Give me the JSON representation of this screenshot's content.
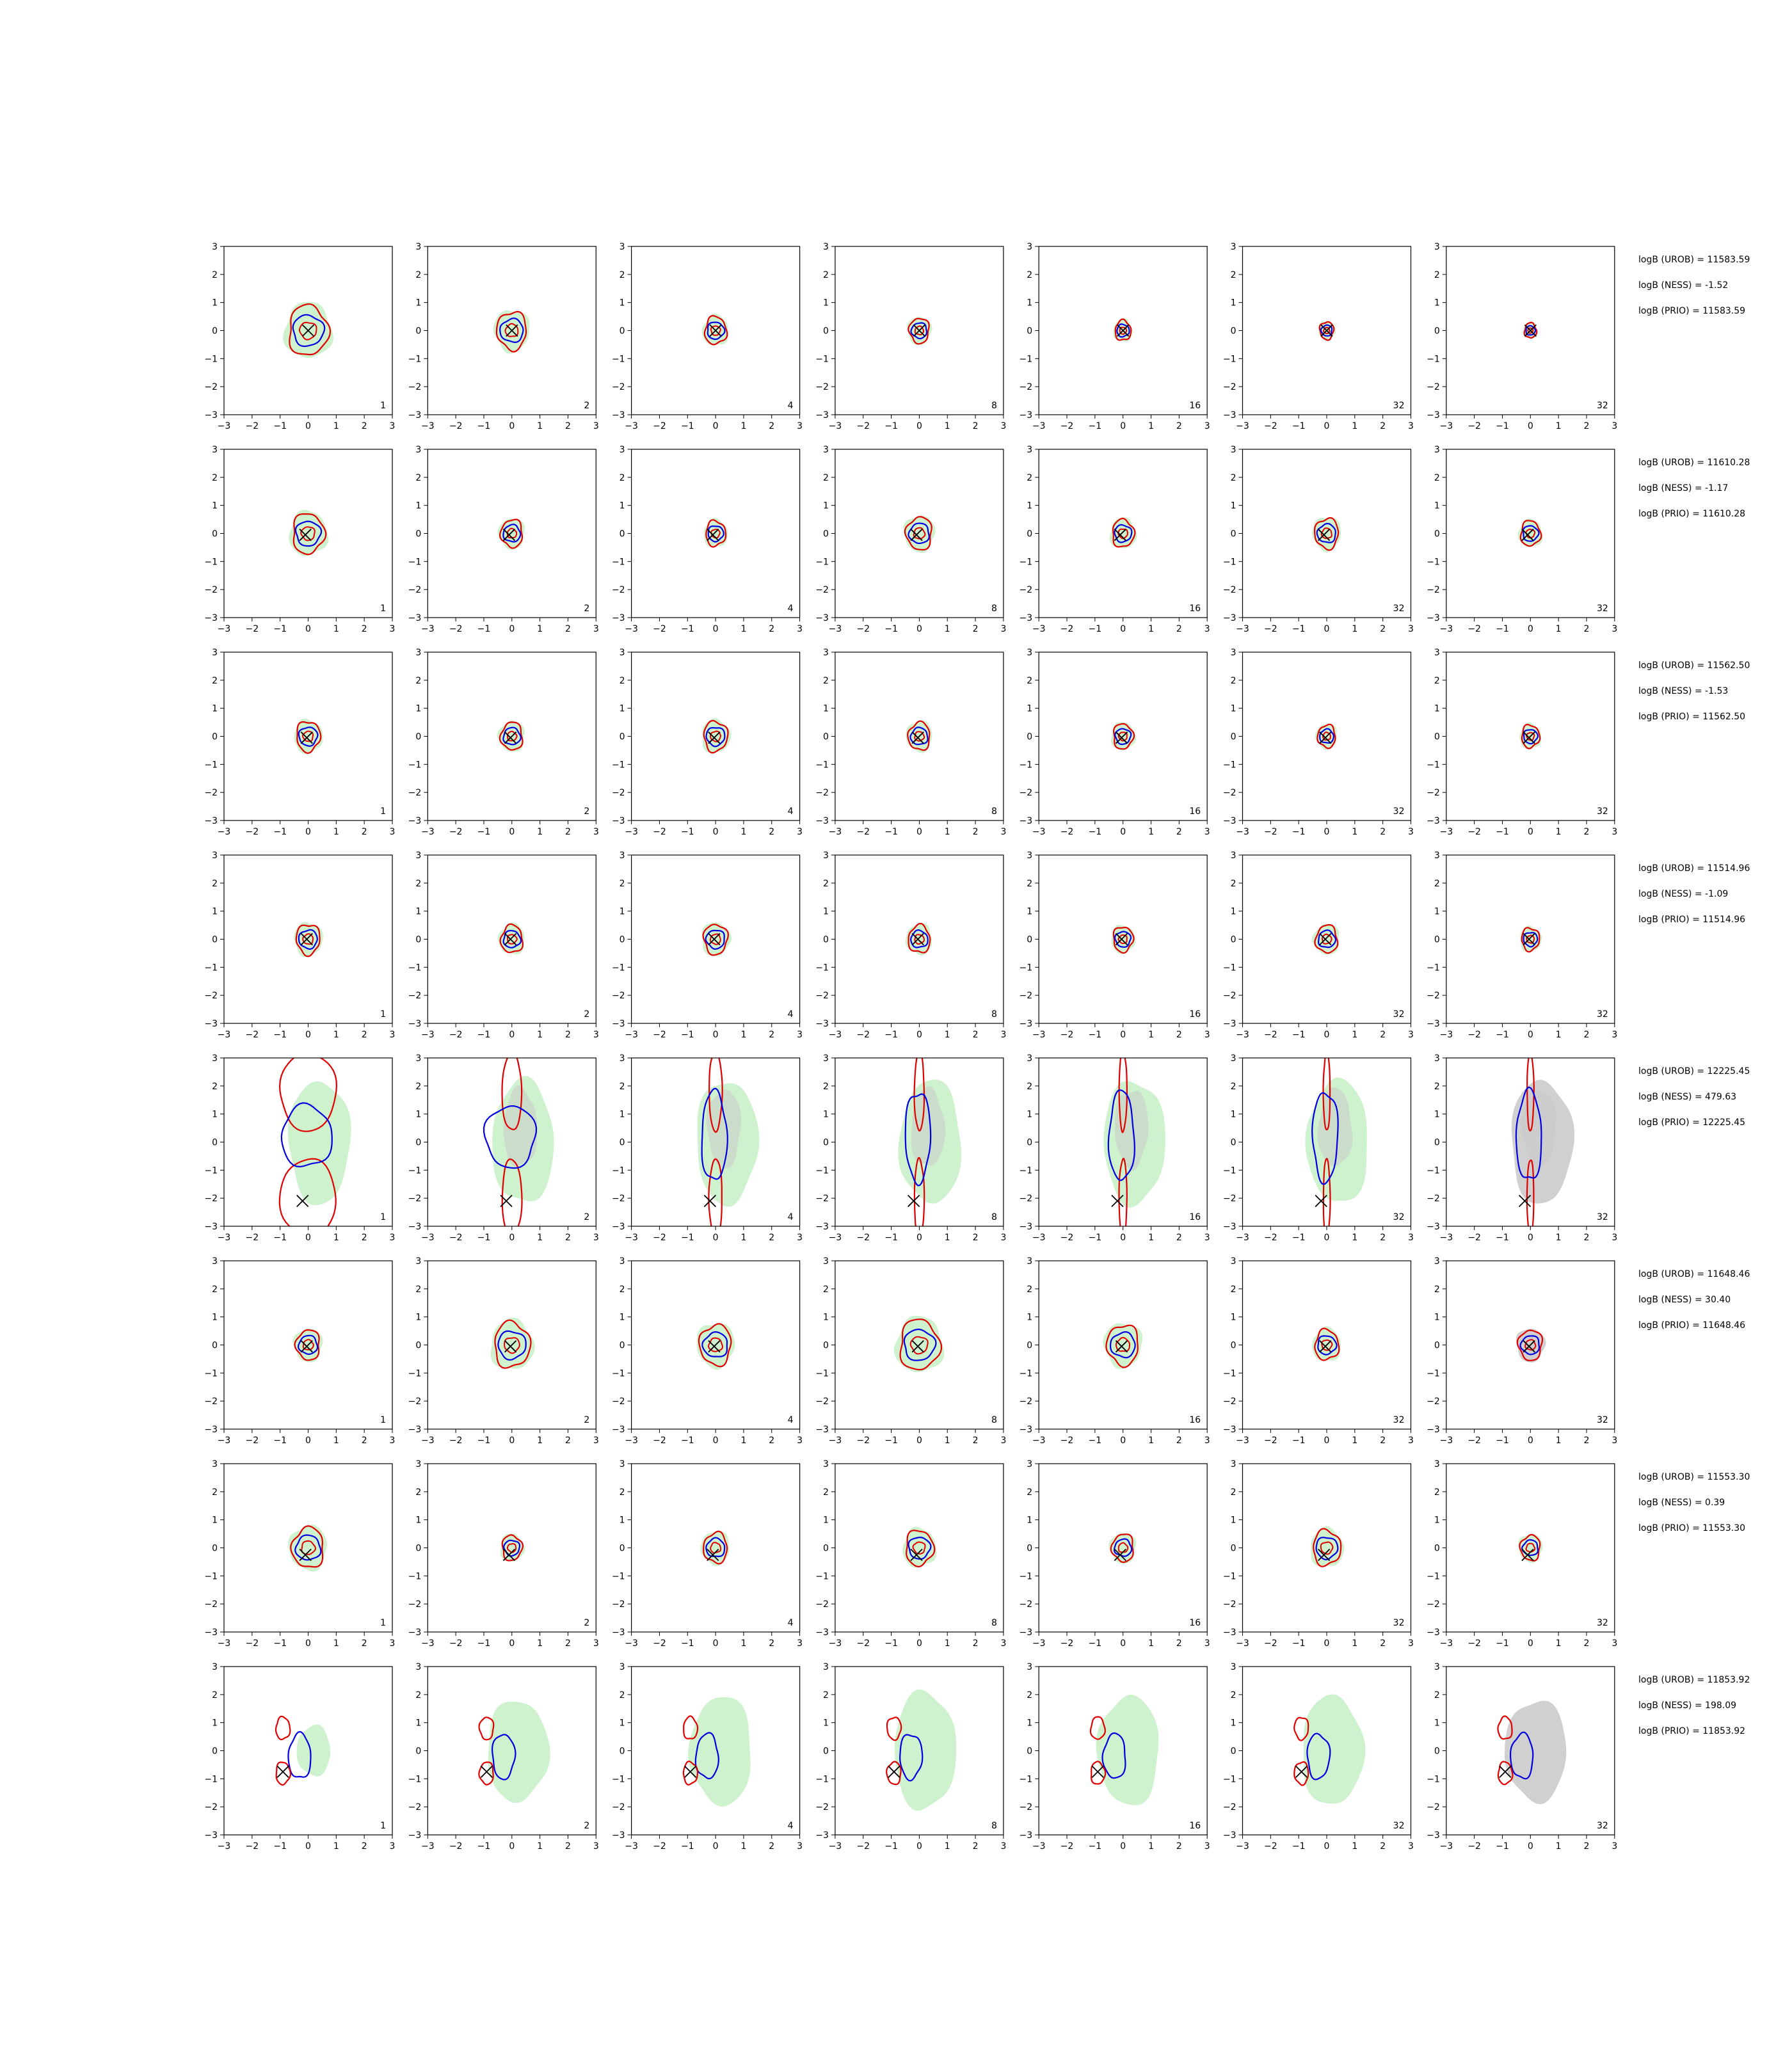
{
  "figure": {
    "colors": {
      "green_fill": "#c6efc6",
      "grey_fill": "#c8c8c8",
      "blue": "#0000e0",
      "red": "#e00000",
      "marker": "#000000"
    },
    "legend": "none"
  },
  "chart_data": {
    "type": "contour",
    "rows": 8,
    "cols": 7,
    "xlim": [
      -3,
      3
    ],
    "ylim": [
      -3,
      3
    ],
    "ticks": [
      "−3",
      "−2",
      "−1",
      "0",
      "1",
      "2",
      "3"
    ],
    "tick_values": [
      -3,
      -2,
      -1,
      0,
      1,
      2,
      3
    ],
    "column_labels": [
      "1",
      "2",
      "4",
      "8",
      "16",
      "32",
      "32"
    ],
    "grid": false,
    "row_data": [
      {
        "annotations": [
          "logB (UROB) = 11583.59",
          "logB (NESS) = -1.52",
          "logB (PRIO) = 11583.59"
        ],
        "marker": [
          0,
          0
        ],
        "kind": "single",
        "spreads": [
          1.0,
          0.75,
          0.55,
          0.5,
          0.4,
          0.35,
          0.3
        ]
      },
      {
        "annotations": [
          "logB (UROB) = 11610.28",
          "logB (NESS) = -1.17",
          "logB (PRIO) = 11610.28"
        ],
        "marker": [
          -0.1,
          -0.05
        ],
        "kind": "single",
        "spreads": [
          0.8,
          0.55,
          0.5,
          0.65,
          0.55,
          0.6,
          0.5
        ]
      },
      {
        "annotations": [
          "logB (UROB) = 11562.50",
          "logB (NESS) = -1.53",
          "logB (PRIO) = 11562.50"
        ],
        "marker": [
          -0.05,
          -0.05
        ],
        "kind": "single",
        "spreads": [
          0.6,
          0.55,
          0.6,
          0.55,
          0.5,
          0.45,
          0.45
        ]
      },
      {
        "annotations": [
          "logB (UROB) = 11514.96",
          "logB (NESS) = -1.09",
          "logB (PRIO) = 11514.96"
        ],
        "marker": [
          -0.05,
          0
        ],
        "kind": "single",
        "spreads": [
          0.6,
          0.55,
          0.6,
          0.55,
          0.5,
          0.55,
          0.45
        ]
      },
      {
        "annotations": [
          "logB (UROB) = 12225.45",
          "logB (NESS) = 479.63",
          "logB (PRIO) = 12225.45"
        ],
        "marker": [
          -0.2,
          -2.1
        ],
        "kind": "split",
        "spreads": [
          2.2,
          1.8,
          1.5,
          1.3,
          1.3,
          1.3,
          1.3
        ]
      },
      {
        "annotations": [
          "logB (UROB) = 11648.46",
          "logB (NESS) = 30.40",
          "logB (PRIO) = 11648.46"
        ],
        "marker": [
          -0.05,
          -0.05
        ],
        "kind": "single",
        "spreads": [
          0.6,
          0.9,
          0.8,
          1.0,
          0.8,
          0.6,
          0.6
        ]
      },
      {
        "annotations": [
          "logB (UROB) = 11553.30",
          "logB (NESS) = 0.39",
          "logB (PRIO) = 11553.30"
        ],
        "marker": [
          -0.1,
          -0.25
        ],
        "kind": "single",
        "spreads": [
          0.8,
          0.5,
          0.6,
          0.7,
          0.55,
          0.7,
          0.5
        ]
      },
      {
        "annotations": [
          "logB (UROB) = 11853.92",
          "logB (NESS) = 198.09",
          "logB (PRIO) = 11853.92"
        ],
        "marker": [
          -0.9,
          -0.75
        ],
        "kind": "bimodal",
        "spreads": [
          0.6,
          1.2,
          1.3,
          1.4,
          1.3,
          1.3,
          1.2
        ]
      }
    ]
  }
}
